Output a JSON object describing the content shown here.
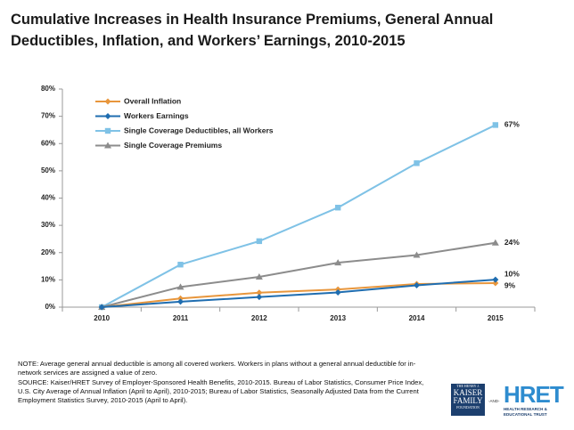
{
  "chart_data": {
    "type": "line",
    "title": "Cumulative Increases in Health Insurance Premiums, General Annual Deductibles, Inflation, and Workers’ Earnings, 2010-2015",
    "categories": [
      "2010",
      "2011",
      "2012",
      "2013",
      "2014",
      "2015"
    ],
    "series": [
      {
        "name": "Overall Inflation",
        "color": "#e8963c",
        "marker": "diamond",
        "values": [
          0,
          3.2,
          5.3,
          6.5,
          8.5,
          8.8
        ],
        "value_labels": [
          null,
          null,
          null,
          null,
          null,
          "9%"
        ]
      },
      {
        "name": "Workers Earnings",
        "color": "#1f6db0",
        "marker": "diamond",
        "values": [
          0,
          2.0,
          3.7,
          5.4,
          8.0,
          10.1
        ],
        "value_labels": [
          null,
          null,
          null,
          null,
          null,
          "10%"
        ]
      },
      {
        "name": "Single Coverage Deductibles, all Workers",
        "color": "#7fc2e6",
        "marker": "square",
        "values": [
          0,
          15.6,
          24.2,
          36.5,
          52.8,
          66.8
        ],
        "value_labels": [
          null,
          null,
          null,
          null,
          null,
          "67%"
        ]
      },
      {
        "name": "Single Coverage Premiums",
        "color": "#8c8c8c",
        "marker": "triangle",
        "values": [
          0,
          7.4,
          11.1,
          16.3,
          19.1,
          23.6
        ],
        "value_labels": [
          null,
          null,
          null,
          null,
          null,
          "24%"
        ]
      }
    ],
    "ylim": [
      0,
      80
    ],
    "yticks": [
      {
        "value": 0,
        "label": "0%"
      },
      {
        "value": 10,
        "label": "10%"
      },
      {
        "value": 20,
        "label": "20%"
      },
      {
        "value": 30,
        "label": "30%"
      },
      {
        "value": 40,
        "label": "40%"
      },
      {
        "value": 50,
        "label": "50%"
      },
      {
        "value": 60,
        "label": "60%"
      },
      {
        "value": 70,
        "label": "70%"
      },
      {
        "value": 80,
        "label": "80%"
      }
    ],
    "grid": false,
    "legend": "top-left"
  },
  "footer": {
    "note": "NOTE:  Average general annual deductible  is among  all covered workers. Workers in plans without a general annual deductible for in-network services are assigned a value of zero.",
    "source": "SOURCE:  Kaiser/HRET Survey of Employer-Sponsored Health Benefits, 2010-2015.  Bureau of Labor Statistics, Consumer Price Index, U.S. City Average of Annual Inflation (April to April), 2010-2015; Bureau of Labor Statistics, Seasonally Adjusted Data from the Current Employment Statistics Survey, 2010-2015 (April to April).",
    "logos": {
      "kff_top": "THE HENRY J.",
      "kff_1": "KAISER",
      "kff_2": "FAMILY",
      "kff_bottom": "FOUNDATION",
      "and": "-AND-",
      "hret": "HRET",
      "hret_sub": "HEALTH RESEARCH & EDUCATIONAL TRUST"
    }
  }
}
